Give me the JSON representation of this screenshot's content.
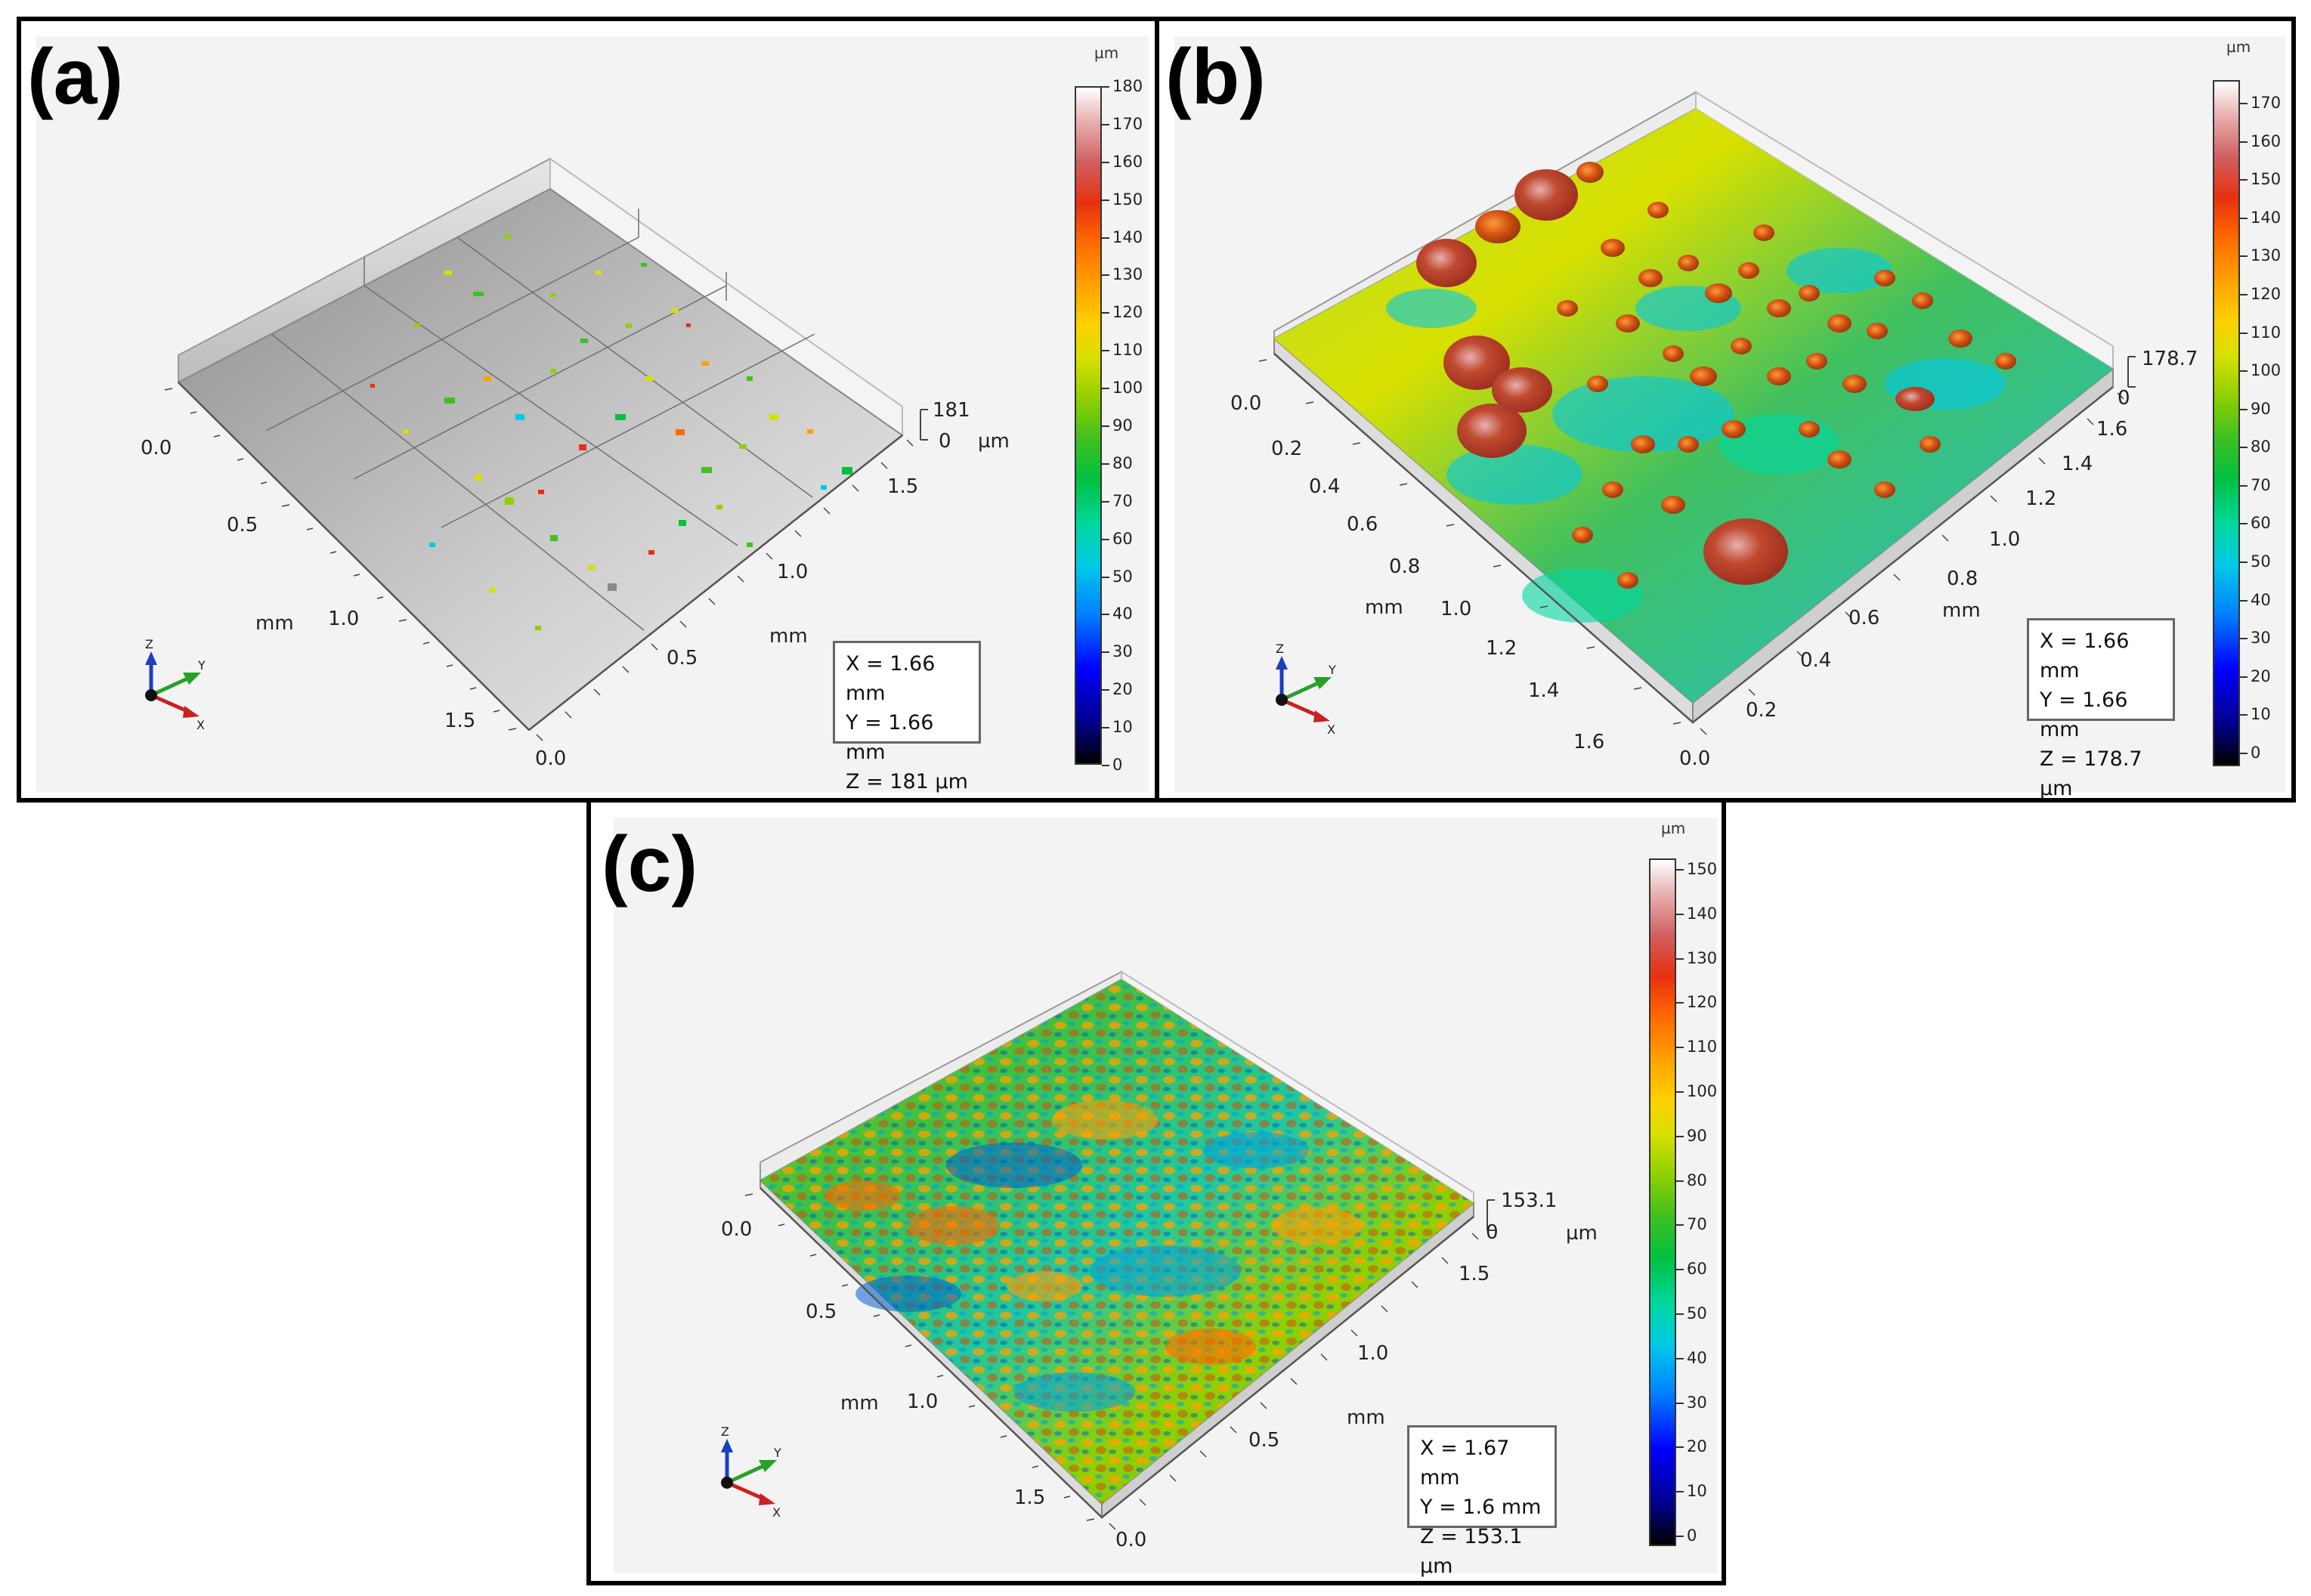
{
  "panels": {
    "a": {
      "label": "(a)",
      "info": {
        "x": "X = 1.66 mm",
        "y": "Y = 1.66 mm",
        "z": "Z = 181 µm"
      },
      "z_axis": {
        "top": "181",
        "bottom": "0",
        "unit": "µm"
      },
      "left_axis": {
        "ticks": [
          "0.0",
          "0.5",
          "1.0",
          "1.5"
        ],
        "unit": "mm"
      },
      "right_axis": {
        "ticks": [
          "1.5",
          "1.0",
          "0.5",
          "0.0"
        ],
        "unit": "mm"
      },
      "colorbar": {
        "unit": "µm",
        "ticks": [
          "180",
          "170",
          "160",
          "150",
          "140",
          "130",
          "120",
          "110",
          "100",
          "90",
          "80",
          "70",
          "60",
          "50",
          "40",
          "30",
          "20",
          "10",
          "0"
        ]
      },
      "triad": {
        "x": "X",
        "y": "Y",
        "z": "Z"
      }
    },
    "b": {
      "label": "(b)",
      "info": {
        "x": "X = 1.66 mm",
        "y": "Y = 1.66 mm",
        "z": "Z = 178.7 µm"
      },
      "z_axis": {
        "top": "178.7",
        "bottom": "0"
      },
      "left_axis": {
        "ticks": [
          "0.0",
          "0.2",
          "0.4",
          "0.6",
          "0.8",
          "1.0",
          "1.2",
          "1.4",
          "1.6"
        ],
        "unit": "mm"
      },
      "right_axis": {
        "ticks": [
          "1.6",
          "1.4",
          "1.2",
          "1.0",
          "0.8",
          "0.6",
          "0.4",
          "0.2",
          "0.0"
        ],
        "unit": "mm"
      },
      "colorbar": {
        "unit": "µm",
        "ticks": [
          "170",
          "160",
          "150",
          "140",
          "130",
          "120",
          "110",
          "100",
          "90",
          "80",
          "70",
          "60",
          "50",
          "40",
          "30",
          "20",
          "10",
          "0"
        ]
      },
      "triad": {
        "x": "X",
        "y": "Y",
        "z": "Z"
      }
    },
    "c": {
      "label": "(c)",
      "info": {
        "x": "X = 1.67 mm",
        "y": "Y = 1.6 mm",
        "z": "Z = 153.1 µm"
      },
      "z_axis": {
        "top": "153.1",
        "bottom": "0",
        "unit": "µm"
      },
      "left_axis": {
        "ticks": [
          "0.0",
          "0.5",
          "1.0",
          "1.5"
        ],
        "unit": "mm"
      },
      "right_axis": {
        "ticks": [
          "1.5",
          "1.0",
          "0.5",
          "0.0"
        ],
        "unit": "mm"
      },
      "colorbar": {
        "unit": "µm",
        "ticks": [
          "150",
          "140",
          "130",
          "120",
          "110",
          "100",
          "90",
          "80",
          "70",
          "60",
          "50",
          "40",
          "30",
          "20",
          "10",
          "0"
        ]
      },
      "triad": {
        "x": "X",
        "y": "Y",
        "z": "Z"
      }
    }
  }
}
